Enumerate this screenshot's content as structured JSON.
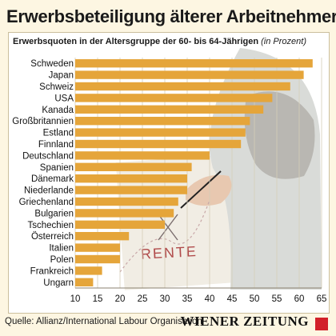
{
  "header": {
    "title": "Erwerbsbeteiligung älterer Arbeitnehmer"
  },
  "chart_data": {
    "type": "bar",
    "orientation": "horizontal",
    "title": "Erwerbsquoten in der Altersgruppe der 60- bis 64-Jährigen",
    "title_note": "(in Prozent)",
    "categories": [
      "Schweden",
      "Japan",
      "Schweiz",
      "USA",
      "Kanada",
      "Großbritannien",
      "Estland",
      "Finnland",
      "Deutschland",
      "Spanien",
      "Dänemark",
      "Niederlande",
      "Griechenland",
      "Bulgarien",
      "Tschechien",
      "Österreich",
      "Italien",
      "Polen",
      "Frankreich",
      "Ungarn"
    ],
    "values": [
      63,
      61,
      58,
      54,
      52,
      49,
      48,
      47,
      40,
      36,
      35,
      35,
      33,
      32,
      30,
      22,
      20,
      20,
      16,
      14
    ],
    "xlim": [
      10,
      65
    ],
    "xticks": [
      10,
      15,
      20,
      25,
      30,
      35,
      40,
      45,
      50,
      55,
      60,
      65
    ],
    "grid": true,
    "bar_color": "#e5a53a",
    "background_drawing_text": "RENTE"
  },
  "footer": {
    "source": "Quelle: Allianz/International Labour Organisation",
    "brand": "WIENER ZEITUNG",
    "brand_color": "#d2202a"
  }
}
